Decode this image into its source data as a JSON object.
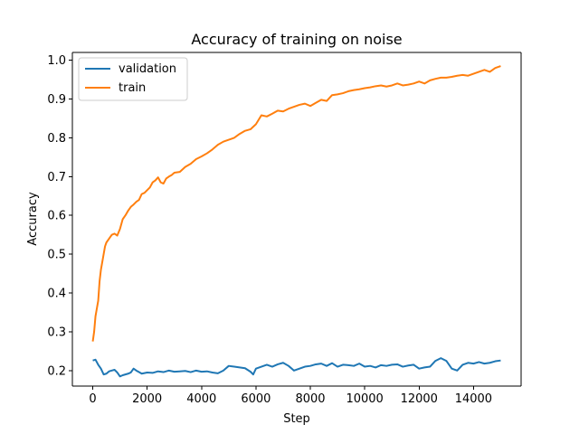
{
  "chart_data": {
    "type": "line",
    "title": "Accuracy of training on noise",
    "xlabel": "Step",
    "ylabel": "Accuracy",
    "xlim": [
      -750,
      15750
    ],
    "ylim": [
      0.16,
      1.02
    ],
    "xticks": [
      0,
      2000,
      4000,
      6000,
      8000,
      10000,
      12000,
      14000
    ],
    "xtick_labels": [
      "0",
      "2000",
      "4000",
      "6000",
      "8000",
      "10000",
      "12000",
      "14000"
    ],
    "yticks": [
      0.2,
      0.3,
      0.4,
      0.5,
      0.6,
      0.7,
      0.8,
      0.9,
      1.0
    ],
    "ytick_labels": [
      "0.2",
      "0.3",
      "0.4",
      "0.5",
      "0.6",
      "0.7",
      "0.8",
      "0.9",
      "1.0"
    ],
    "grid": false,
    "legend_position": "top-left",
    "series": [
      {
        "name": "validation",
        "color": "#1f77b4",
        "x": [
          0,
          100,
          200,
          300,
          400,
          500,
          600,
          700,
          800,
          900,
          1000,
          1100,
          1200,
          1300,
          1400,
          1500,
          1600,
          1700,
          1800,
          2000,
          2200,
          2400,
          2600,
          2800,
          3000,
          3200,
          3400,
          3600,
          3800,
          4000,
          4200,
          4400,
          4600,
          4800,
          5000,
          5200,
          5400,
          5600,
          5800,
          5900,
          6000,
          6200,
          6400,
          6600,
          6800,
          7000,
          7200,
          7400,
          7600,
          7800,
          8000,
          8200,
          8400,
          8600,
          8800,
          9000,
          9200,
          9400,
          9600,
          9800,
          10000,
          10200,
          10400,
          10600,
          10800,
          11000,
          11200,
          11400,
          11600,
          11800,
          12000,
          12200,
          12400,
          12600,
          12800,
          13000,
          13200,
          13400,
          13600,
          13800,
          14000,
          14200,
          14400,
          14600,
          14800,
          15000
        ],
        "values": [
          0.226,
          0.228,
          0.215,
          0.205,
          0.19,
          0.192,
          0.198,
          0.2,
          0.202,
          0.195,
          0.185,
          0.188,
          0.19,
          0.192,
          0.195,
          0.205,
          0.2,
          0.196,
          0.192,
          0.195,
          0.194,
          0.198,
          0.196,
          0.2,
          0.197,
          0.198,
          0.199,
          0.196,
          0.2,
          0.197,
          0.198,
          0.195,
          0.193,
          0.2,
          0.212,
          0.21,
          0.208,
          0.206,
          0.197,
          0.19,
          0.205,
          0.21,
          0.215,
          0.21,
          0.216,
          0.22,
          0.212,
          0.2,
          0.205,
          0.21,
          0.212,
          0.216,
          0.218,
          0.212,
          0.219,
          0.21,
          0.215,
          0.214,
          0.212,
          0.218,
          0.21,
          0.212,
          0.208,
          0.214,
          0.212,
          0.215,
          0.216,
          0.21,
          0.213,
          0.215,
          0.205,
          0.208,
          0.21,
          0.225,
          0.232,
          0.225,
          0.205,
          0.2,
          0.215,
          0.22,
          0.218,
          0.222,
          0.218,
          0.22,
          0.224,
          0.226
        ]
      },
      {
        "name": "train",
        "color": "#ff7f0e",
        "x": [
          0,
          50,
          100,
          150,
          200,
          250,
          300,
          350,
          400,
          450,
          500,
          600,
          700,
          800,
          900,
          1000,
          1100,
          1200,
          1300,
          1400,
          1500,
          1600,
          1700,
          1800,
          1900,
          2000,
          2100,
          2200,
          2300,
          2400,
          2500,
          2600,
          2700,
          2800,
          2900,
          3000,
          3200,
          3400,
          3600,
          3800,
          4000,
          4200,
          4400,
          4600,
          4800,
          5000,
          5200,
          5400,
          5600,
          5800,
          6000,
          6200,
          6400,
          6600,
          6800,
          7000,
          7200,
          7400,
          7600,
          7800,
          8000,
          8200,
          8400,
          8600,
          8800,
          9000,
          9200,
          9400,
          9600,
          9800,
          10000,
          10200,
          10400,
          10600,
          10800,
          11000,
          11200,
          11400,
          11600,
          11800,
          12000,
          12200,
          12400,
          12600,
          12800,
          13000,
          13200,
          13400,
          13600,
          13800,
          14000,
          14200,
          14400,
          14600,
          14800,
          15000
        ],
        "values": [
          0.275,
          0.3,
          0.34,
          0.36,
          0.38,
          0.43,
          0.46,
          0.48,
          0.5,
          0.52,
          0.53,
          0.54,
          0.55,
          0.553,
          0.548,
          0.565,
          0.59,
          0.6,
          0.612,
          0.622,
          0.628,
          0.635,
          0.64,
          0.655,
          0.658,
          0.665,
          0.672,
          0.685,
          0.69,
          0.698,
          0.685,
          0.682,
          0.695,
          0.7,
          0.704,
          0.71,
          0.712,
          0.725,
          0.733,
          0.745,
          0.752,
          0.76,
          0.77,
          0.782,
          0.79,
          0.795,
          0.8,
          0.81,
          0.818,
          0.822,
          0.835,
          0.858,
          0.855,
          0.862,
          0.87,
          0.868,
          0.875,
          0.88,
          0.885,
          0.888,
          0.882,
          0.89,
          0.898,
          0.895,
          0.91,
          0.912,
          0.915,
          0.92,
          0.923,
          0.925,
          0.928,
          0.93,
          0.933,
          0.935,
          0.932,
          0.935,
          0.94,
          0.935,
          0.937,
          0.94,
          0.945,
          0.94,
          0.948,
          0.952,
          0.955,
          0.955,
          0.957,
          0.96,
          0.962,
          0.96,
          0.965,
          0.97,
          0.975,
          0.97,
          0.98,
          0.985
        ]
      }
    ]
  }
}
